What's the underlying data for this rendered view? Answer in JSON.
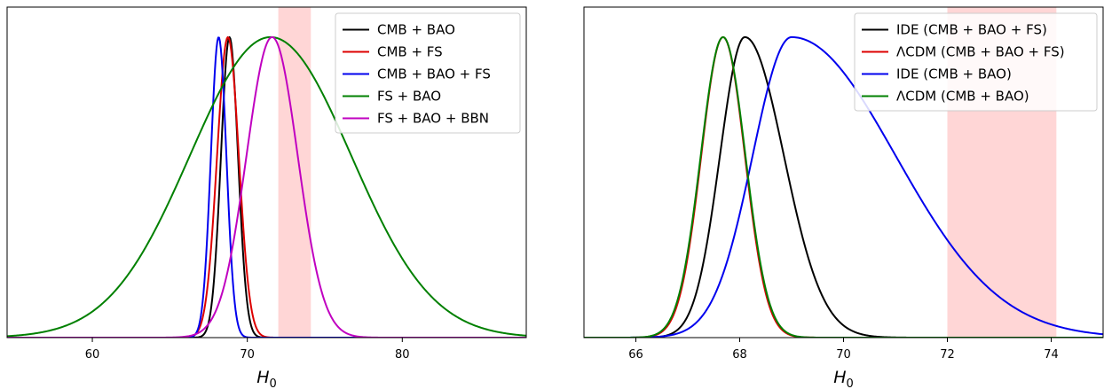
{
  "chart_data": [
    {
      "type": "line",
      "subtype": "posterior-distributions",
      "xlabel": "H0",
      "xlabel_main": "H",
      "xlabel_sub": "0",
      "ylabel": "",
      "xlim": [
        54.5,
        88.0
      ],
      "ylim": [
        0,
        1.1
      ],
      "xticks": [
        60,
        70,
        80
      ],
      "xtick_labels": [
        "60",
        "70",
        "80"
      ],
      "yticks_shown": false,
      "grid": false,
      "legend_position": "top-right",
      "shaded_band": {
        "x": [
          72.0,
          74.1
        ],
        "color": "#ffd6d6"
      },
      "series": [
        {
          "name": "CMB + BAO",
          "color": "#000000",
          "distribution": "gaussian",
          "mean": 68.85,
          "sd": 0.55,
          "peak": 1.0
        },
        {
          "name": "CMB + FS",
          "color": "#dd0000",
          "distribution": "gaussian",
          "mean": 68.75,
          "sd": 0.7,
          "peak": 1.0
        },
        {
          "name": "CMB + BAO + FS",
          "color": "#0000ee",
          "distribution": "gaussian",
          "mean": 68.15,
          "sd": 0.5,
          "peak": 1.0
        },
        {
          "name": "FS + BAO",
          "color": "#008000",
          "distribution": "gaussian",
          "mean": 71.5,
          "sd": 5.2,
          "peak": 1.0
        },
        {
          "name": "FS + BAO + BBN",
          "color": "#c000c0",
          "distribution": "gaussian",
          "mean": 71.6,
          "sd": 1.65,
          "peak": 1.0
        }
      ]
    },
    {
      "type": "line",
      "subtype": "posterior-distributions",
      "xlabel": "H0",
      "xlabel_main": "H",
      "xlabel_sub": "0",
      "ylabel": "",
      "xlim": [
        65.0,
        75.0
      ],
      "ylim": [
        0,
        1.1
      ],
      "xticks": [
        66,
        68,
        70,
        72,
        74
      ],
      "xtick_labels": [
        "66",
        "68",
        "70",
        "72",
        "74"
      ],
      "yticks_shown": false,
      "grid": false,
      "legend_position": "top-right",
      "shaded_band": {
        "x": [
          72.0,
          74.1
        ],
        "color": "#ffd6d6"
      },
      "series": [
        {
          "name": "IDE (CMB + BAO + FS)",
          "color": "#000000",
          "distribution": "skew",
          "mean": 68.1,
          "sd_left": 0.48,
          "sd_right": 0.75,
          "peak": 1.0
        },
        {
          "name": "ΛCDM (CMB + BAO + FS)",
          "color": "#dd0000",
          "distribution": "gaussian",
          "mean": 67.68,
          "sd": 0.42,
          "peak": 1.0
        },
        {
          "name": "IDE (CMB + BAO)",
          "color": "#0000ee",
          "distribution": "skew",
          "mean": 69.0,
          "sd_left": 0.75,
          "sd_right": 2.0,
          "peak": 1.0
        },
        {
          "name": "ΛCDM (CMB + BAO)",
          "color": "#008000",
          "distribution": "gaussian",
          "mean": 67.68,
          "sd": 0.43,
          "peak": 1.0
        }
      ]
    }
  ]
}
